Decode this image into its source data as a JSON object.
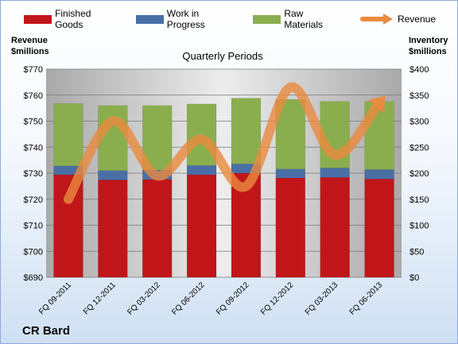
{
  "chart_data": {
    "type": "bar",
    "title": "Quarterly Periods",
    "categories": [
      "FQ 09-2011",
      "FQ 12-2011",
      "FQ 03-2012",
      "FQ 06-2012",
      "FQ 09-2012",
      "FQ 12-2012",
      "FQ 03-2013",
      "FQ 06-2013"
    ],
    "stacked": true,
    "left_axis": {
      "label_line1": "Revenue",
      "label_line2": "$millions",
      "range": [
        690,
        770
      ],
      "ticks": [
        "$690",
        "$700",
        "$710",
        "$720",
        "$730",
        "$740",
        "$750",
        "$760",
        "$770"
      ],
      "tick_values": [
        690,
        700,
        710,
        720,
        730,
        740,
        750,
        760,
        770
      ]
    },
    "right_axis": {
      "label_line1": "Inventory",
      "label_line2": "$millions",
      "range": [
        0,
        400
      ],
      "ticks": [
        "$0",
        "$50",
        "$100",
        "$150",
        "$200",
        "$250",
        "$300",
        "$350",
        "$400"
      ],
      "tick_values": [
        0,
        50,
        100,
        150,
        200,
        250,
        300,
        350,
        400
      ]
    },
    "series": [
      {
        "name": "Finished Goods",
        "axis": "right",
        "color": "#c0161a",
        "values": [
          197,
          187,
          188,
          197,
          200,
          191,
          192,
          189
        ]
      },
      {
        "name": "Work in Progress",
        "axis": "right",
        "color": "#4a6fa6",
        "values": [
          17,
          18,
          18,
          18,
          18,
          17,
          18,
          18
        ]
      },
      {
        "name": "Raw Materials",
        "axis": "right",
        "color": "#8aae4e",
        "values": [
          120,
          125,
          124,
          118,
          126,
          134,
          128,
          131
        ]
      },
      {
        "name": "Revenue",
        "axis": "left",
        "type": "line",
        "color": "#ea8a3f",
        "values": [
          720,
          750,
          729,
          743,
          725,
          763,
          737,
          757
        ]
      }
    ],
    "grid": true,
    "legend_position": "top"
  },
  "company_name": "CR Bard"
}
